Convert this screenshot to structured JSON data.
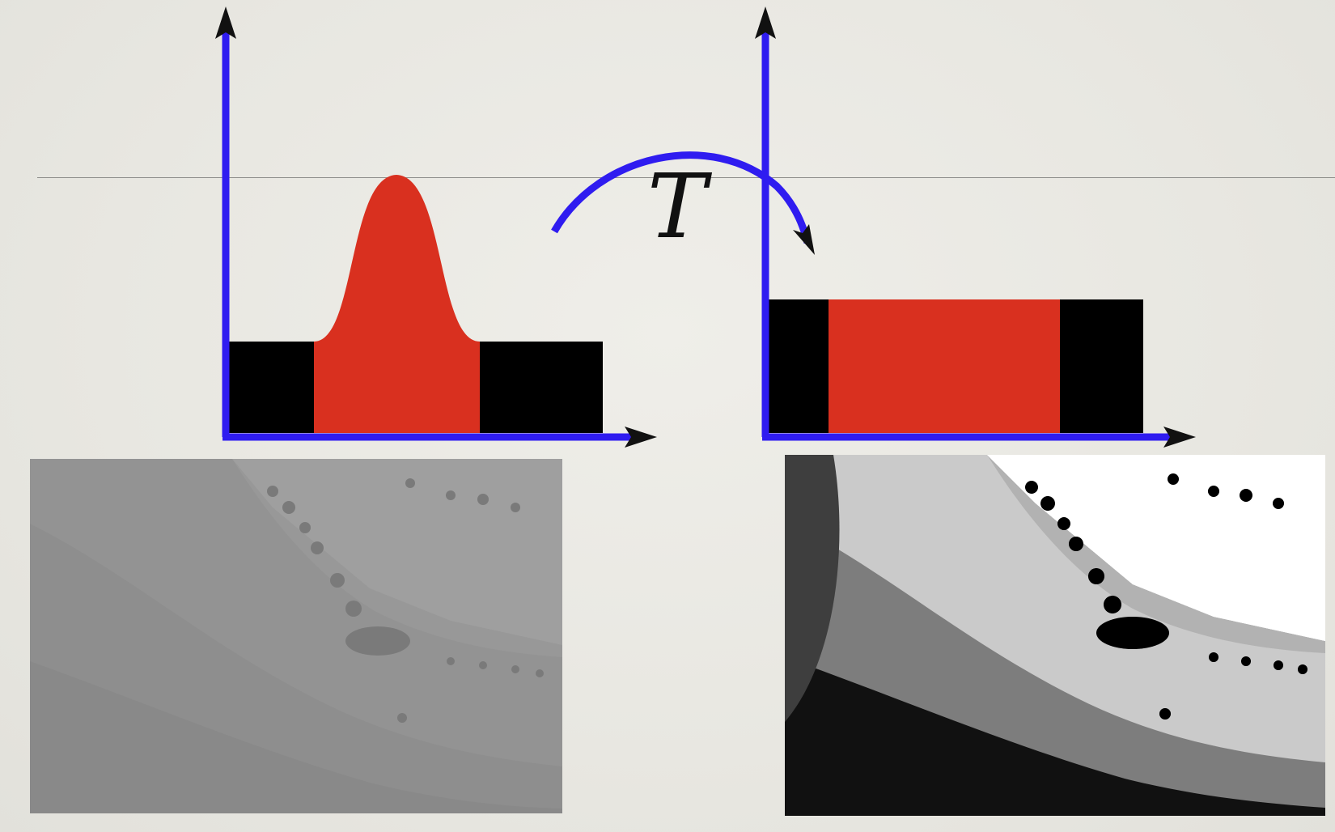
{
  "transform_label": "T",
  "colors": {
    "axis": "#2f1cf0",
    "distribution": "#d9301f",
    "tail": "#000000",
    "background": "#ebeae4",
    "rule": "#8d8d8a"
  },
  "histograms": [
    {
      "id": "input",
      "shape": "gaussian-peak",
      "tails": "black",
      "description_visible": false
    },
    {
      "id": "output",
      "shape": "uniform",
      "tails": "black",
      "description_visible": false
    }
  ],
  "images": [
    {
      "id": "low-contrast-landscape",
      "tone": "grayscale-low-contrast"
    },
    {
      "id": "high-contrast-landscape",
      "tone": "grayscale-high-contrast"
    }
  ],
  "icons": {
    "arrow": "curved-arrow-icon"
  }
}
